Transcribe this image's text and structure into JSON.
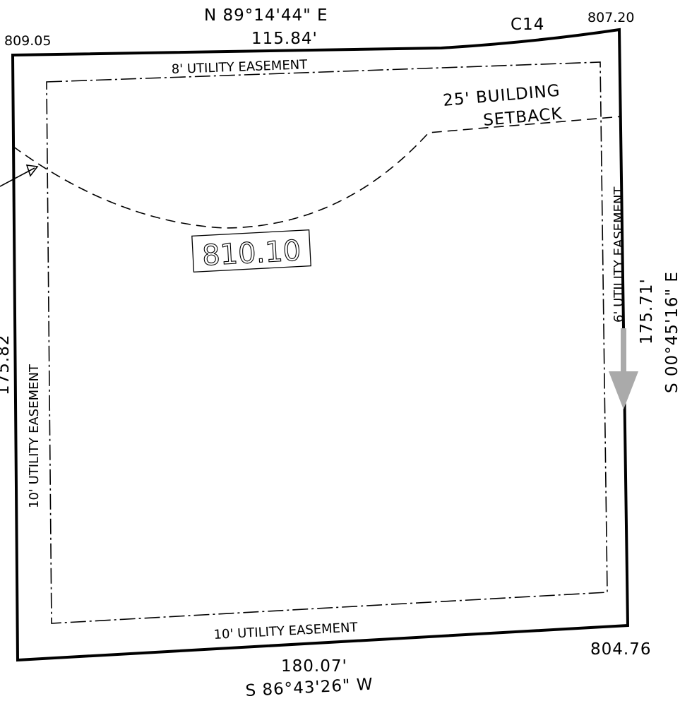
{
  "plat": {
    "elevations": {
      "northwest": "809.05",
      "northeast": "807.20",
      "southeast": "804.76",
      "pad": "810.10"
    },
    "curve_label": "C14",
    "north_boundary": {
      "bearing": "N 89°14'44\" E",
      "distance": "115.84'"
    },
    "east_boundary": {
      "bearing": "S 00°45'16\" E",
      "distance": "175.71'"
    },
    "south_boundary": {
      "bearing": "S 86°43'26\" W",
      "distance": "180.07'"
    },
    "west_boundary": {
      "distance_partial": "175.82"
    },
    "easements": {
      "north": "8' UTILITY EASEMENT",
      "west": "10' UTILITY EASEMENT",
      "south": "10' UTILITY EASEMENT",
      "east": "6' UTILITY EASEMENT"
    },
    "setback": {
      "line1": "25' BUILDING",
      "line2": "SETBACK"
    },
    "colors": {
      "ink": "#000000",
      "arrow": "#aaaaaa"
    }
  }
}
